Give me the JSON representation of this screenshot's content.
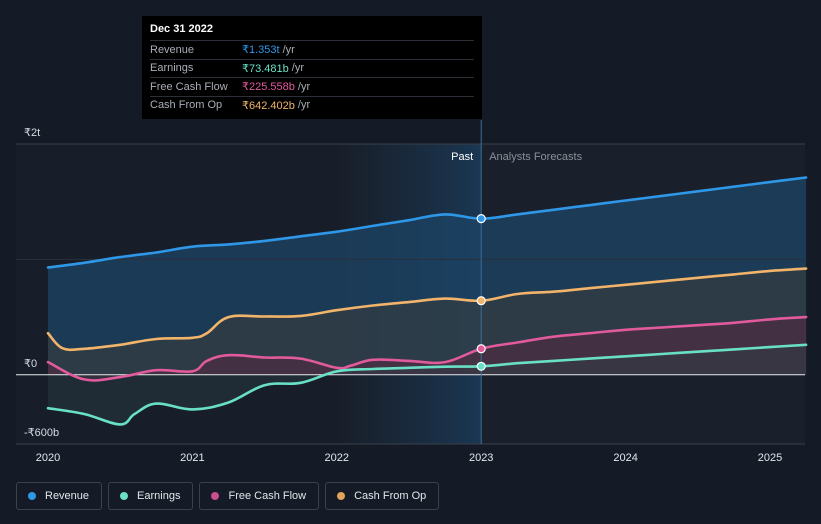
{
  "tooltip": {
    "date": "Dec 31 2022",
    "rows": [
      {
        "name": "Revenue",
        "value": "₹1.353t",
        "unit": "/yr",
        "color": "#2f97e8"
      },
      {
        "name": "Earnings",
        "value": "₹73.481b",
        "unit": "/yr",
        "color": "#69e0c6"
      },
      {
        "name": "Free Cash Flow",
        "value": "₹225.558b",
        "unit": "/yr",
        "color": "#e05a9c"
      },
      {
        "name": "Cash From Op",
        "value": "₹642.402b",
        "unit": "/yr",
        "color": "#f2b46a"
      }
    ]
  },
  "legend": [
    {
      "label": "Revenue",
      "color": "#2f97e8"
    },
    {
      "label": "Earnings",
      "color": "#69e0c6"
    },
    {
      "label": "Free Cash Flow",
      "color": "#c94f8f"
    },
    {
      "label": "Cash From Op",
      "color": "#e0a35a"
    }
  ],
  "chart_data": {
    "type": "line",
    "y_tick_labels": [
      "₹2t",
      "₹0",
      "-₹600b"
    ],
    "y_tick_values": [
      2000,
      0,
      -600
    ],
    "ylim": [
      -600,
      2000
    ],
    "xlim": [
      2019.8,
      2025.25
    ],
    "x_ticks": [
      2020,
      2021,
      2022,
      2023,
      2024,
      2025
    ],
    "x_tick_labels": [
      "2020",
      "2021",
      "2022",
      "2023",
      "2024",
      "2025"
    ],
    "divider_x": 2023,
    "past_label": "Past",
    "forecast_label": "Analysts Forecasts",
    "series": [
      {
        "name": "Revenue",
        "color": "#2f97e8",
        "x": [
          2020.0,
          2020.25,
          2020.5,
          2020.75,
          2021.0,
          2021.25,
          2021.5,
          2021.75,
          2022.0,
          2022.25,
          2022.5,
          2022.75,
          2023.0,
          2023.25,
          2023.5,
          2023.75,
          2024.0,
          2024.25,
          2024.5,
          2024.75,
          2025.0,
          2025.25
        ],
        "values": [
          930,
          970,
          1020,
          1060,
          1110,
          1130,
          1160,
          1200,
          1240,
          1290,
          1340,
          1390,
          1353,
          1390,
          1430,
          1470,
          1510,
          1550,
          1590,
          1630,
          1670,
          1710
        ]
      },
      {
        "name": "Cash From Op",
        "color": "#f2b46a",
        "x": [
          2020.0,
          2020.1,
          2020.25,
          2020.5,
          2020.75,
          2021.0,
          2021.1,
          2021.25,
          2021.5,
          2021.75,
          2022.0,
          2022.25,
          2022.5,
          2022.75,
          2023.0,
          2023.25,
          2023.5,
          2023.75,
          2024.0,
          2024.25,
          2024.5,
          2024.75,
          2025.0,
          2025.25
        ],
        "values": [
          360,
          230,
          225,
          260,
          310,
          320,
          360,
          500,
          505,
          510,
          560,
          600,
          630,
          660,
          642,
          700,
          720,
          750,
          780,
          810,
          840,
          870,
          900,
          920
        ]
      },
      {
        "name": "Free Cash Flow",
        "color": "#e05a9c",
        "x": [
          2020.0,
          2020.25,
          2020.5,
          2020.75,
          2021.0,
          2021.1,
          2021.25,
          2021.5,
          2021.75,
          2022.0,
          2022.1,
          2022.25,
          2022.5,
          2022.75,
          2023.0,
          2023.25,
          2023.5,
          2023.75,
          2024.0,
          2024.25,
          2024.5,
          2024.75,
          2025.0,
          2025.25
        ],
        "values": [
          110,
          -40,
          -20,
          40,
          30,
          120,
          170,
          150,
          140,
          60,
          80,
          130,
          120,
          110,
          225.558,
          280,
          330,
          360,
          390,
          410,
          430,
          450,
          480,
          500
        ]
      },
      {
        "name": "Earnings",
        "color": "#69e0c6",
        "x": [
          2020.0,
          2020.25,
          2020.5,
          2020.6,
          2020.75,
          2021.0,
          2021.25,
          2021.5,
          2021.75,
          2022.0,
          2022.25,
          2022.5,
          2022.75,
          2023.0,
          2023.25,
          2023.5,
          2023.75,
          2024.0,
          2024.25,
          2024.5,
          2024.75,
          2025.0,
          2025.25
        ],
        "values": [
          -290,
          -340,
          -430,
          -340,
          -250,
          -300,
          -240,
          -90,
          -70,
          30,
          50,
          60,
          70,
          73.481,
          100,
          120,
          140,
          160,
          180,
          200,
          220,
          240,
          260
        ]
      }
    ]
  }
}
